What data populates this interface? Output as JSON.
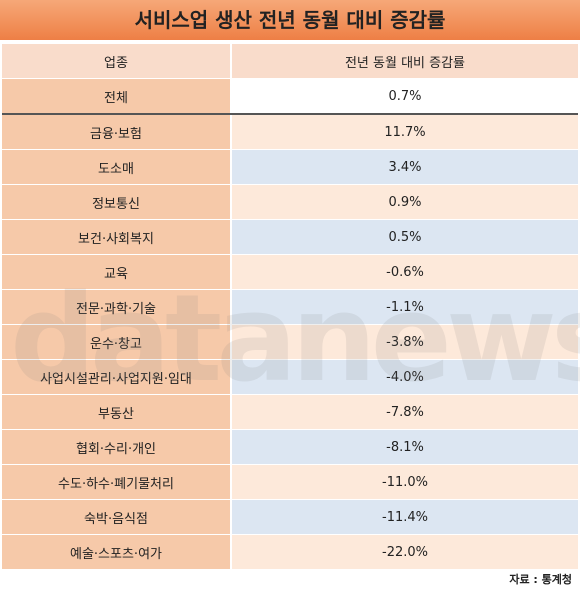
{
  "title": "서비스업 생산 전년 동월 대비 증감률",
  "table": {
    "header": [
      "업종",
      "전년 동월 대비 증감률"
    ],
    "total": [
      "전체",
      "0.7%"
    ],
    "rows": [
      [
        "금융·보험",
        "11.7%"
      ],
      [
        "도소매",
        "3.4%"
      ],
      [
        "정보통신",
        "0.9%"
      ],
      [
        "보건·사회복지",
        "0.5%"
      ],
      [
        "교육",
        "-0.6%"
      ],
      [
        "전문·과학·기술",
        "-1.1%"
      ],
      [
        "운수·창고",
        "-3.8%"
      ],
      [
        "사업시설관리·사업지원·임대",
        "-4.0%"
      ],
      [
        "부동산",
        "-7.8%"
      ],
      [
        "협회·수리·개인",
        "-8.1%"
      ],
      [
        "수도·하수·폐기물처리",
        "-11.0%"
      ],
      [
        "숙박·음식점",
        "-11.4%"
      ],
      [
        "예술·스포츠·여가",
        "-22.0%"
      ]
    ]
  },
  "watermark": "datanews",
  "source": "자료 : 통계청"
}
